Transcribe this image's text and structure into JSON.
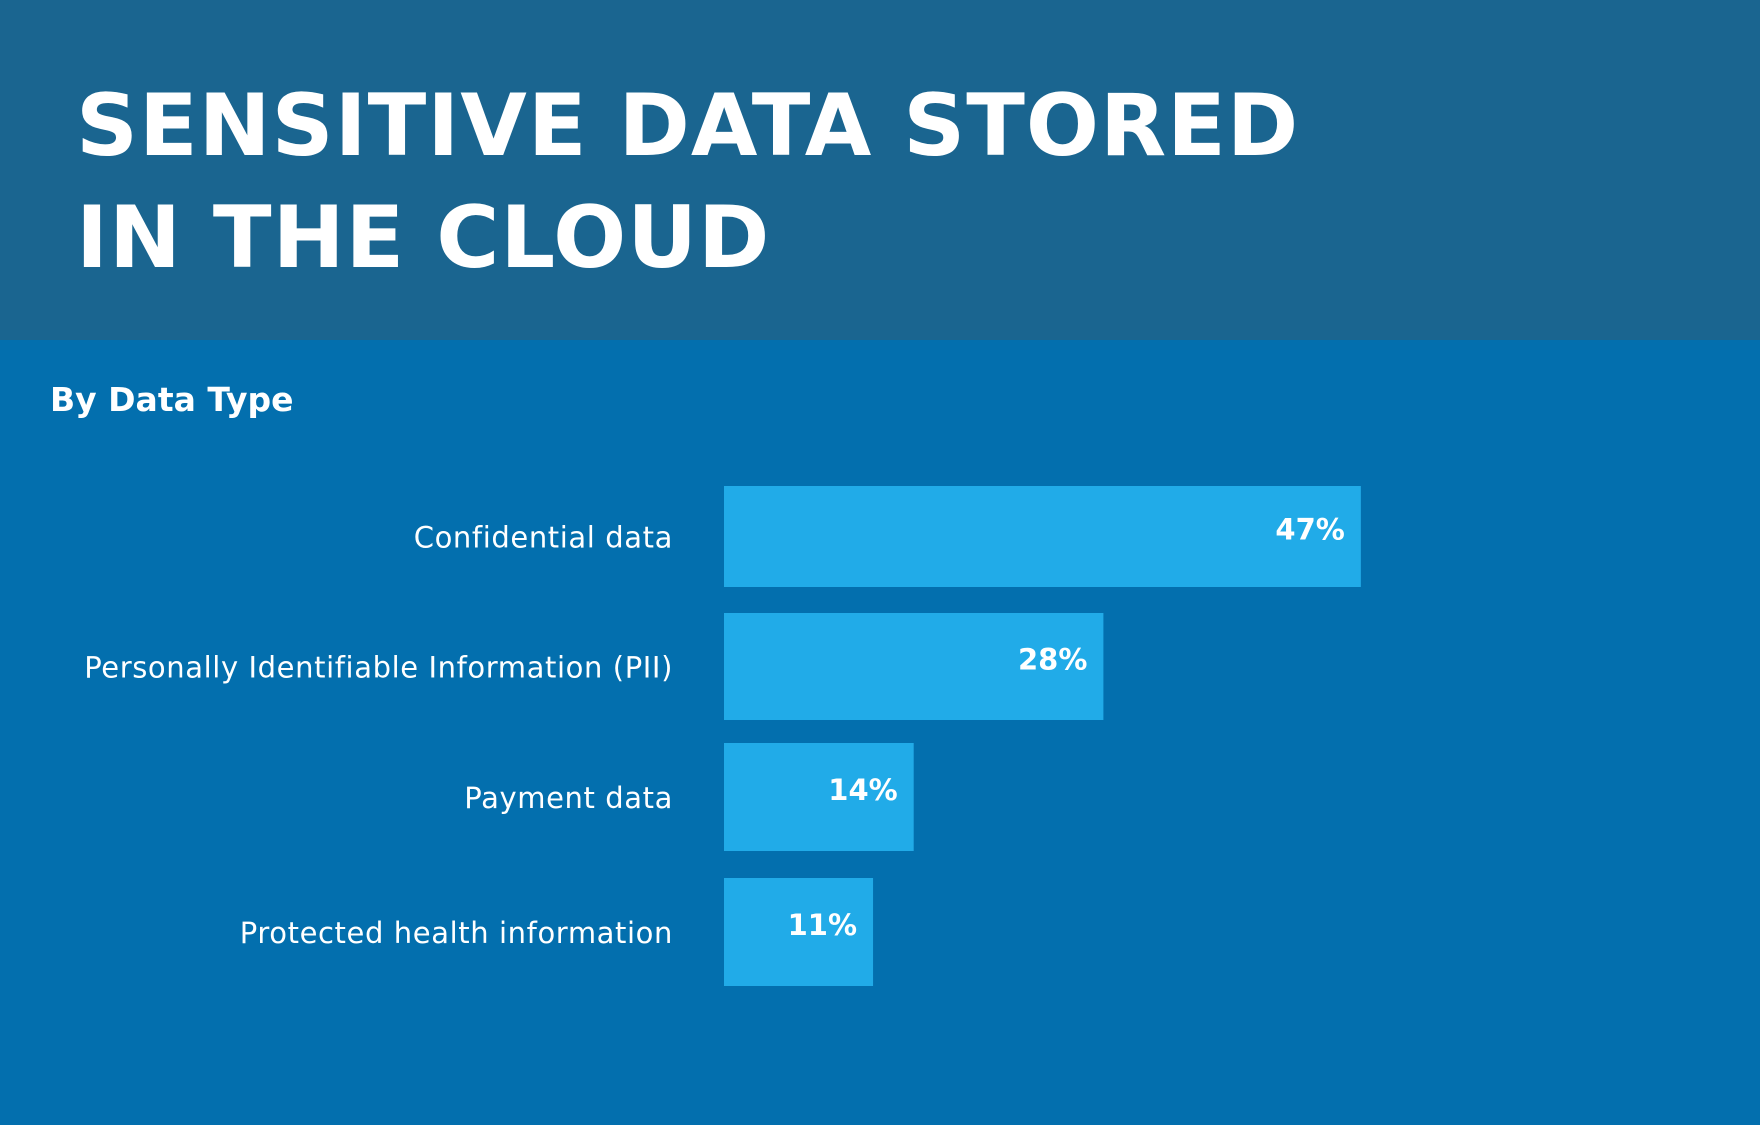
{
  "header": {
    "title": "SENSITIVE DATA STORED IN THE CLOUD"
  },
  "colors": {
    "header_bg": "#1a6590",
    "panel_bg": "#036fae",
    "bar": "#21abe8",
    "text": "#ffffff"
  },
  "chart_data": {
    "type": "bar",
    "orientation": "horizontal",
    "title": "SENSITIVE DATA STORED IN THE CLOUD",
    "subtitle": "By Data Type",
    "categories": [
      "Confidential data",
      "Personally Identifiable Information (PII)",
      "Payment data",
      "Protected health information"
    ],
    "values": [
      47,
      28,
      14,
      11
    ],
    "value_labels": [
      "47%",
      "28%",
      "14%",
      "11%"
    ],
    "unit": "%",
    "xlabel": "",
    "ylabel": "",
    "grid": false,
    "legend": "none"
  }
}
